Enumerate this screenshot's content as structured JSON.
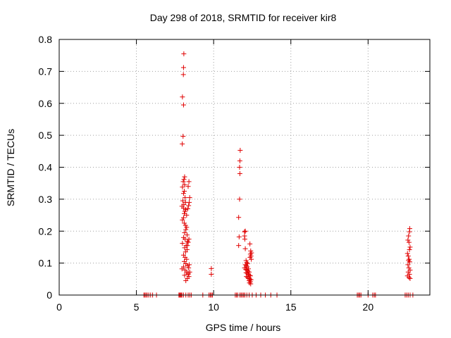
{
  "chart_data": {
    "type": "scatter",
    "title": "Day 298 of 2018, SRMTID for receiver kir8",
    "xlabel": "GPS time / hours",
    "ylabel": "SRMTID / TECUs",
    "xlim": [
      0,
      24
    ],
    "ylim": [
      0,
      0.8
    ],
    "xticks": [
      0,
      5,
      10,
      15,
      20
    ],
    "yticks": [
      0,
      0.1,
      0.2,
      0.3,
      0.4,
      0.5,
      0.6,
      0.7,
      0.8
    ],
    "xtick_labels": [
      "0",
      "5",
      "10",
      "15",
      "20"
    ],
    "ytick_labels": [
      "0",
      "0.1",
      "0.2",
      "0.3",
      "0.4",
      "0.5",
      "0.6",
      "0.7",
      "0.8"
    ],
    "grid": true,
    "marker": "+",
    "color": "#e00000",
    "series": [
      {
        "name": "SRMTID",
        "points": [
          [
            8.07,
            0.755
          ],
          [
            8.05,
            0.712
          ],
          [
            8.04,
            0.69
          ],
          [
            7.98,
            0.62
          ],
          [
            8.05,
            0.595
          ],
          [
            8.02,
            0.497
          ],
          [
            7.97,
            0.473
          ],
          [
            8.12,
            0.37
          ],
          [
            8.08,
            0.362
          ],
          [
            8.03,
            0.355
          ],
          [
            8.12,
            0.345
          ],
          [
            7.98,
            0.338
          ],
          [
            8.1,
            0.325
          ],
          [
            8.05,
            0.318
          ],
          [
            8.15,
            0.305
          ],
          [
            8.0,
            0.295
          ],
          [
            8.18,
            0.29
          ],
          [
            8.07,
            0.283
          ],
          [
            7.95,
            0.278
          ],
          [
            8.05,
            0.272
          ],
          [
            8.2,
            0.268
          ],
          [
            8.14,
            0.262
          ],
          [
            8.1,
            0.255
          ],
          [
            8.25,
            0.25
          ],
          [
            8.05,
            0.242
          ],
          [
            7.98,
            0.235
          ],
          [
            8.1,
            0.225
          ],
          [
            8.18,
            0.218
          ],
          [
            8.25,
            0.212
          ],
          [
            8.2,
            0.205
          ],
          [
            8.12,
            0.195
          ],
          [
            8.28,
            0.188
          ],
          [
            8.05,
            0.18
          ],
          [
            8.15,
            0.175
          ],
          [
            8.3,
            0.168
          ],
          [
            7.98,
            0.162
          ],
          [
            8.22,
            0.155
          ],
          [
            8.12,
            0.148
          ],
          [
            8.28,
            0.142
          ],
          [
            8.18,
            0.135
          ],
          [
            8.05,
            0.125
          ],
          [
            8.15,
            0.118
          ],
          [
            8.25,
            0.112
          ],
          [
            8.1,
            0.105
          ],
          [
            8.2,
            0.098
          ],
          [
            8.3,
            0.092
          ],
          [
            8.05,
            0.088
          ],
          [
            7.95,
            0.082
          ],
          [
            8.15,
            0.078
          ],
          [
            8.25,
            0.072
          ],
          [
            8.35,
            0.068
          ],
          [
            8.12,
            0.062
          ],
          [
            8.4,
            0.058
          ],
          [
            8.3,
            0.052
          ],
          [
            8.2,
            0.045
          ],
          [
            8.4,
            0.355
          ],
          [
            8.35,
            0.34
          ],
          [
            8.45,
            0.305
          ],
          [
            8.42,
            0.29
          ],
          [
            8.38,
            0.28
          ],
          [
            8.32,
            0.27
          ],
          [
            8.4,
            0.175
          ],
          [
            8.35,
            0.165
          ],
          [
            8.3,
            0.155
          ],
          [
            8.42,
            0.095
          ],
          [
            8.38,
            0.085
          ],
          [
            8.45,
            0.072
          ],
          [
            8.35,
            0.065
          ],
          [
            9.85,
            0.083
          ],
          [
            9.85,
            0.065
          ],
          [
            11.72,
            0.453
          ],
          [
            11.7,
            0.42
          ],
          [
            11.68,
            0.4
          ],
          [
            11.7,
            0.38
          ],
          [
            11.68,
            0.3
          ],
          [
            11.62,
            0.243
          ],
          [
            11.65,
            0.182
          ],
          [
            11.62,
            0.155
          ],
          [
            12.0,
            0.198
          ],
          [
            12.05,
            0.2
          ],
          [
            12.0,
            0.185
          ],
          [
            12.02,
            0.175
          ],
          [
            12.35,
            0.16
          ],
          [
            12.05,
            0.145
          ],
          [
            12.4,
            0.138
          ],
          [
            12.45,
            0.132
          ],
          [
            12.38,
            0.128
          ],
          [
            12.42,
            0.122
          ],
          [
            12.36,
            0.118
          ],
          [
            12.44,
            0.112
          ],
          [
            12.1,
            0.108
          ],
          [
            12.15,
            0.102
          ],
          [
            12.2,
            0.098
          ],
          [
            12.05,
            0.095
          ],
          [
            12.12,
            0.092
          ],
          [
            12.18,
            0.088
          ],
          [
            12.0,
            0.085
          ],
          [
            12.25,
            0.082
          ],
          [
            12.08,
            0.08
          ],
          [
            12.15,
            0.078
          ],
          [
            12.22,
            0.075
          ],
          [
            12.3,
            0.072
          ],
          [
            12.1,
            0.07
          ],
          [
            12.18,
            0.068
          ],
          [
            12.25,
            0.065
          ],
          [
            12.32,
            0.062
          ],
          [
            12.38,
            0.06
          ],
          [
            12.12,
            0.058
          ],
          [
            12.2,
            0.055
          ],
          [
            12.28,
            0.052
          ],
          [
            12.35,
            0.05
          ],
          [
            12.42,
            0.048
          ],
          [
            12.3,
            0.045
          ],
          [
            12.38,
            0.042
          ],
          [
            12.32,
            0.038
          ],
          [
            12.4,
            0.035
          ],
          [
            22.7,
            0.208
          ],
          [
            22.68,
            0.198
          ],
          [
            22.62,
            0.185
          ],
          [
            22.58,
            0.172
          ],
          [
            22.65,
            0.165
          ],
          [
            22.72,
            0.15
          ],
          [
            22.68,
            0.142
          ],
          [
            22.55,
            0.13
          ],
          [
            22.6,
            0.122
          ],
          [
            22.66,
            0.112
          ],
          [
            22.62,
            0.108
          ],
          [
            22.7,
            0.104
          ],
          [
            22.58,
            0.095
          ],
          [
            22.64,
            0.085
          ],
          [
            22.72,
            0.078
          ],
          [
            22.6,
            0.072
          ],
          [
            22.68,
            0.065
          ],
          [
            22.55,
            0.06
          ],
          [
            22.65,
            0.055
          ],
          [
            22.72,
            0.052
          ],
          [
            5.48,
            0.0
          ],
          [
            5.55,
            0.0
          ],
          [
            5.62,
            0.0
          ],
          [
            5.7,
            0.0
          ],
          [
            5.8,
            0.0
          ],
          [
            5.92,
            0.0
          ],
          [
            6.05,
            0.0
          ],
          [
            6.3,
            0.0
          ],
          [
            7.75,
            0.0
          ],
          [
            7.8,
            0.0
          ],
          [
            7.85,
            0.0
          ],
          [
            7.9,
            0.0
          ],
          [
            7.95,
            0.0
          ],
          [
            8.05,
            0.0
          ],
          [
            8.2,
            0.0
          ],
          [
            8.35,
            0.0
          ],
          [
            8.45,
            0.0
          ],
          [
            8.55,
            0.0
          ],
          [
            9.3,
            0.0
          ],
          [
            9.7,
            0.0
          ],
          [
            9.78,
            0.0
          ],
          [
            9.85,
            0.0
          ],
          [
            9.92,
            0.0
          ],
          [
            11.4,
            0.0
          ],
          [
            11.48,
            0.0
          ],
          [
            11.56,
            0.0
          ],
          [
            11.7,
            0.0
          ],
          [
            11.78,
            0.0
          ],
          [
            11.86,
            0.0
          ],
          [
            11.94,
            0.0
          ],
          [
            12.02,
            0.0
          ],
          [
            12.15,
            0.0
          ],
          [
            12.3,
            0.0
          ],
          [
            12.5,
            0.0
          ],
          [
            12.75,
            0.0
          ],
          [
            13.05,
            0.0
          ],
          [
            13.35,
            0.0
          ],
          [
            13.7,
            0.0
          ],
          [
            14.1,
            0.0
          ],
          [
            19.3,
            0.0
          ],
          [
            19.38,
            0.0
          ],
          [
            19.46,
            0.0
          ],
          [
            19.54,
            0.0
          ],
          [
            20.0,
            0.0
          ],
          [
            20.3,
            0.0
          ],
          [
            20.4,
            0.0
          ],
          [
            20.48,
            0.0
          ],
          [
            22.4,
            0.0
          ],
          [
            22.5,
            0.0
          ],
          [
            22.6,
            0.0
          ],
          [
            22.72,
            0.0
          ],
          [
            22.9,
            0.0
          ]
        ]
      }
    ]
  }
}
